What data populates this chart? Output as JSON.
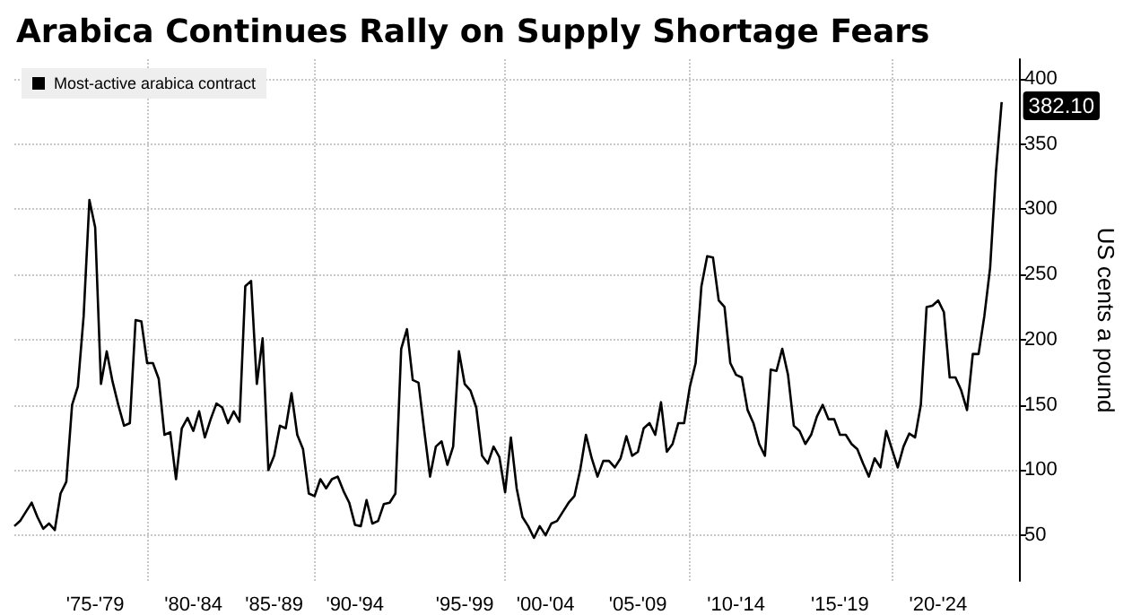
{
  "chart_data": {
    "type": "line",
    "title": "Arabica Continues Rally on Supply Shortage Fears",
    "ylabel": "US cents a pound",
    "categories": [
      null,
      null,
      null,
      null,
      null,
      null,
      null,
      null,
      null,
      null,
      null,
      null,
      null,
      null,
      "'75-'79",
      null,
      null,
      null,
      null,
      null,
      null,
      null,
      null,
      null,
      null,
      null,
      null,
      null,
      null,
      null,
      null,
      "'80-'84",
      null,
      null,
      null,
      null,
      null,
      null,
      null,
      null,
      null,
      null,
      null,
      null,
      null,
      "'85-'89",
      null,
      null,
      null,
      null,
      null,
      null,
      null,
      null,
      null,
      null,
      null,
      null,
      null,
      "'90-'94",
      null,
      null,
      null,
      null,
      null,
      null,
      null,
      null,
      null,
      null,
      null,
      null,
      null,
      null,
      null,
      null,
      null,
      null,
      "'95-'99",
      null,
      null,
      null,
      null,
      null,
      null,
      null,
      null,
      null,
      null,
      null,
      null,
      null,
      "'00-'04",
      null,
      null,
      null,
      null,
      null,
      null,
      null,
      null,
      null,
      null,
      null,
      null,
      null,
      null,
      null,
      "'05-'09",
      null,
      null,
      null,
      null,
      null,
      null,
      null,
      null,
      null,
      null,
      null,
      null,
      null,
      null,
      null,
      null,
      "'10-'14",
      null,
      null,
      null,
      null,
      null,
      null,
      null,
      null,
      null,
      null,
      null,
      null,
      null,
      null,
      null,
      null,
      null,
      "'15-'19",
      null,
      null,
      null,
      null,
      null,
      null,
      null,
      null,
      null,
      null,
      null,
      null,
      null,
      null,
      null,
      null,
      "'20-'24",
      null,
      null,
      null,
      null,
      null,
      null,
      null,
      null,
      null,
      null,
      null,
      null,
      null,
      null
    ],
    "ylim": [
      15,
      415
    ],
    "yticks": [
      50,
      100,
      150,
      200,
      250,
      300,
      350,
      400
    ],
    "grid": true,
    "legend": "top left",
    "marker": "none",
    "line_style": "solid",
    "annotations": [
      "382.10"
    ],
    "series": [
      {
        "name": "Most-active arabica contract",
        "color": "#000000",
        "values": [
          57,
          61,
          68,
          75,
          64,
          55,
          59,
          54,
          82,
          91,
          150,
          164,
          218,
          307,
          286,
          166,
          191,
          168,
          150,
          134,
          136,
          215,
          214,
          182,
          182,
          170,
          127,
          129,
          93,
          132,
          140,
          130,
          145,
          125,
          139,
          151,
          148,
          136,
          145,
          137,
          241,
          245,
          166,
          201,
          100,
          111,
          134,
          132,
          159,
          127,
          116,
          82,
          80,
          93,
          86,
          93,
          95,
          84,
          75,
          58,
          57,
          77,
          59,
          61,
          74,
          75,
          82,
          193,
          208,
          169,
          167,
          130,
          95,
          118,
          122,
          104,
          118,
          191,
          166,
          161,
          148,
          111,
          105,
          118,
          110,
          83,
          125,
          86,
          64,
          57,
          48,
          57,
          50,
          59,
          61,
          68,
          75,
          80,
          100,
          127,
          109,
          95,
          107,
          107,
          102,
          109,
          126,
          111,
          114,
          132,
          136,
          127,
          152,
          114,
          120,
          136,
          136,
          164,
          182,
          241,
          264,
          263,
          230,
          225,
          182,
          173,
          171,
          146,
          136,
          120,
          111,
          177,
          176,
          193,
          173,
          134,
          130,
          120,
          127,
          141,
          150,
          139,
          139,
          127,
          127,
          120,
          116,
          105,
          95,
          109,
          102,
          130,
          116,
          102,
          118,
          128,
          125,
          150,
          225,
          226,
          230,
          221,
          171,
          171,
          161,
          146,
          189,
          189,
          218,
          255,
          328,
          382.1,
          null,
          null,
          null
        ]
      }
    ]
  }
}
